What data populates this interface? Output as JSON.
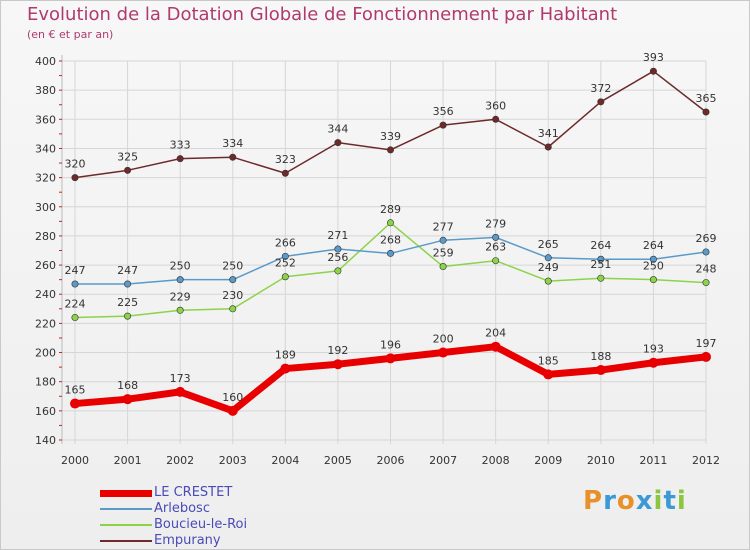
{
  "header": {
    "title": "Evolution de la Dotation Globale de Fonctionnement par Habitant",
    "subtitle": "(en € et par an)"
  },
  "logo": {
    "text": "Proxiti",
    "letters": [
      {
        "ch": "P",
        "color": "#e8912a"
      },
      {
        "ch": "r",
        "color": "#3b9ad6"
      },
      {
        "ch": "o",
        "color": "#e8912a"
      },
      {
        "ch": "x",
        "color": "#3b9ad6"
      },
      {
        "ch": "i",
        "color": "#8cc63f"
      },
      {
        "ch": "t",
        "color": "#3b9ad6"
      },
      {
        "ch": "i",
        "color": "#8cc63f"
      }
    ]
  },
  "chart_data": {
    "type": "line",
    "title": "Evolution de la Dotation Globale de Fonctionnement par Habitant",
    "subtitle": "(en € et par an)",
    "x": [
      2000,
      2001,
      2002,
      2003,
      2004,
      2005,
      2006,
      2007,
      2008,
      2009,
      2010,
      2011,
      2012
    ],
    "ylim": [
      140,
      400
    ],
    "yticks": [
      140,
      160,
      180,
      200,
      220,
      240,
      260,
      280,
      300,
      320,
      340,
      360,
      380,
      400
    ],
    "grid": true,
    "legend_position": "bottom-left",
    "series": [
      {
        "name": "LE CRESTET",
        "color": "#e80000",
        "values": [
          165,
          168,
          173,
          160,
          189,
          192,
          196,
          200,
          204,
          185,
          188,
          193,
          197
        ]
      },
      {
        "name": "Arlebosc",
        "color": "#5a9ac8",
        "values": [
          247,
          247,
          250,
          250,
          266,
          271,
          268,
          277,
          279,
          265,
          264,
          264,
          269
        ]
      },
      {
        "name": "Boucieu-le-Roi",
        "color": "#8cd34a",
        "values": [
          224,
          225,
          229,
          230,
          252,
          256,
          289,
          259,
          263,
          249,
          251,
          250,
          248
        ]
      },
      {
        "name": "Empurany",
        "color": "#6e2a2a",
        "values": [
          320,
          325,
          333,
          334,
          323,
          344,
          339,
          356,
          360,
          341,
          372,
          393,
          365
        ]
      }
    ]
  }
}
